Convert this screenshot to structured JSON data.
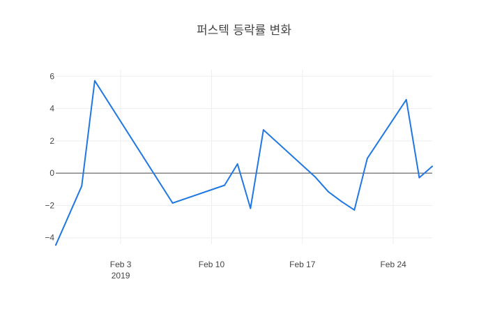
{
  "chart_data": {
    "type": "line",
    "title": "퍼스텍 등락률 변화",
    "xlabel": "",
    "ylabel": "",
    "x_axis_kind": "date",
    "xlim": [
      "2019-01-29",
      "2019-02-27"
    ],
    "ylim": [
      -4.4,
      6.4
    ],
    "x_ticks": [
      {
        "date": "2019-02-03",
        "label": "Feb 3",
        "sublabel": "2019"
      },
      {
        "date": "2019-02-10",
        "label": "Feb 10",
        "sublabel": ""
      },
      {
        "date": "2019-02-17",
        "label": "Feb 17",
        "sublabel": ""
      },
      {
        "date": "2019-02-24",
        "label": "Feb 24",
        "sublabel": ""
      }
    ],
    "y_ticks": [
      {
        "value": 6,
        "label": "6"
      },
      {
        "value": 4,
        "label": "4"
      },
      {
        "value": 2,
        "label": "2"
      },
      {
        "value": 0,
        "label": "0"
      },
      {
        "value": -2,
        "label": "−2"
      },
      {
        "value": -4,
        "label": "−4"
      }
    ],
    "grid": true,
    "zero_line": true,
    "series": [
      {
        "color": "#1f77e4",
        "points": [
          {
            "x": "2019-01-29",
            "y": -4.45
          },
          {
            "x": "2019-01-31",
            "y": -0.8
          },
          {
            "x": "2019-02-01",
            "y": 5.72
          },
          {
            "x": "2019-02-07",
            "y": -1.85
          },
          {
            "x": "2019-02-11",
            "y": -0.75
          },
          {
            "x": "2019-02-12",
            "y": 0.57
          },
          {
            "x": "2019-02-13",
            "y": -2.18
          },
          {
            "x": "2019-02-14",
            "y": 2.68
          },
          {
            "x": "2019-02-18",
            "y": -0.25
          },
          {
            "x": "2019-02-19",
            "y": -1.15
          },
          {
            "x": "2019-02-20",
            "y": -1.75
          },
          {
            "x": "2019-02-21",
            "y": -2.28
          },
          {
            "x": "2019-02-22",
            "y": 0.92
          },
          {
            "x": "2019-02-25",
            "y": 4.55
          },
          {
            "x": "2019-02-26",
            "y": -0.28
          },
          {
            "x": "2019-02-27",
            "y": 0.42
          }
        ]
      }
    ]
  }
}
